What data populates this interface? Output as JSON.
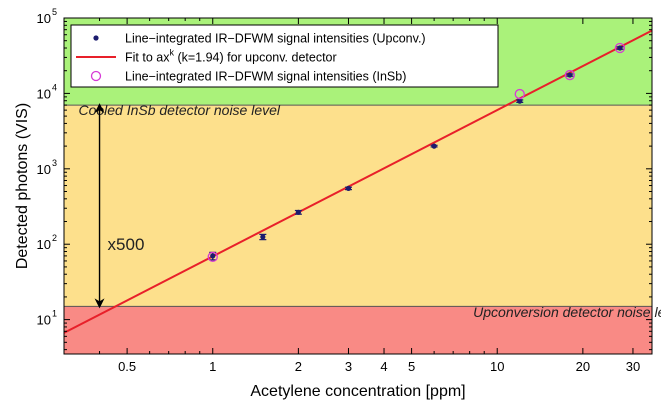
{
  "chart_data": {
    "type": "scatter",
    "title": "",
    "xlabel": "Acetylene concentration [ppm]",
    "ylabel": "Detected photons (VIS)",
    "xscale": "log",
    "yscale": "log",
    "xlim": [
      0.3,
      35
    ],
    "ylim": [
      3.5,
      100000
    ],
    "x_ticks": [
      {
        "value": 0.5,
        "label": "0.5"
      },
      {
        "value": 1,
        "label": "1"
      },
      {
        "value": 2,
        "label": "2"
      },
      {
        "value": 3,
        "label": "3"
      },
      {
        "value": 4,
        "label": "4"
      },
      {
        "value": 5,
        "label": "5"
      },
      {
        "value": 10,
        "label": "10"
      },
      {
        "value": 20,
        "label": "20"
      },
      {
        "value": 30,
        "label": "30"
      }
    ],
    "y_ticks": [
      {
        "value": 10,
        "base": "10",
        "exp": "1"
      },
      {
        "value": 100,
        "base": "10",
        "exp": "2"
      },
      {
        "value": 1000,
        "base": "10",
        "exp": "3"
      },
      {
        "value": 10000,
        "base": "10",
        "exp": "4"
      },
      {
        "value": 100000,
        "base": "10",
        "exp": "5"
      }
    ],
    "regions": [
      {
        "y_from": 7000,
        "y_to": 100000,
        "color": "#aaf27a"
      },
      {
        "y_from": 15,
        "y_to": 7000,
        "color": "#fde08c"
      },
      {
        "y_from": 3.5,
        "y_to": 15,
        "color": "#f98a85"
      }
    ],
    "series": [
      {
        "name": "Line−integrated IR−DFWM signal intensities (Upconv.)",
        "kind": "points",
        "color": "#1c1c6e",
        "x": [
          1,
          1.5,
          2,
          3,
          6,
          12,
          18,
          27
        ],
        "y": [
          70,
          125,
          265,
          550,
          2000,
          7900,
          17500,
          40000
        ],
        "yerr": [
          8,
          10,
          15,
          20,
          50,
          300,
          600,
          1500
        ]
      },
      {
        "name_prefix": "Fit to ax",
        "name_sup": "k",
        "name_suffix": " (k=1.94) for upconv. detector",
        "kind": "fit",
        "color": "#e8202a",
        "a": 69,
        "k": 1.94
      },
      {
        "name": "Line−integrated IR−DFWM signal intensities (InSb)",
        "kind": "open-circles",
        "color": "#d63ad6",
        "x": [
          1,
          12,
          18,
          27
        ],
        "y": [
          68,
          9800,
          17500,
          40000
        ]
      }
    ],
    "annotations": [
      {
        "text": "Cooled InSb detector noise level",
        "x": 0.34,
        "y": 5500
      },
      {
        "text": "Upconversion detector noise level",
        "x": 8.5,
        "y": 11.5
      },
      {
        "text": "x500",
        "x": 0.4,
        "y": 100
      }
    ],
    "arrow": {
      "x": 0.4,
      "y_from": 15,
      "y_to": 7000
    },
    "legend_position": "top-left",
    "grid": false
  }
}
